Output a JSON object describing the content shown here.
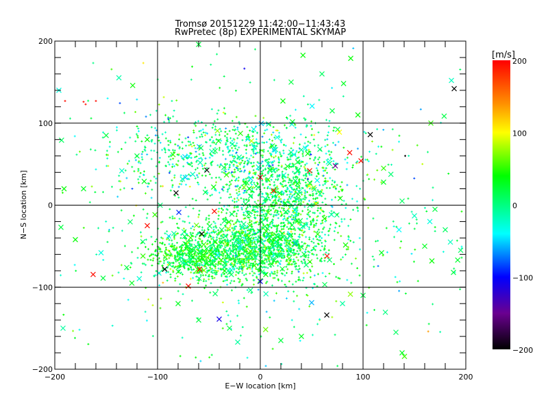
{
  "chart_data": {
    "type": "scatter",
    "title_line1": "Tromsø 20151229 11:42:00−11:43:43",
    "title_line2": "RwPretec (8p) EXPERIMENTAL SKYMAP",
    "xlabel": "E−W location [km]",
    "ylabel": "N−S location [km]",
    "xlim": [
      -200,
      200
    ],
    "ylim": [
      -200,
      200
    ],
    "x_ticks": [
      -200,
      -100,
      0,
      100,
      200
    ],
    "y_ticks": [
      -200,
      -100,
      0,
      100,
      200
    ],
    "x_tick_labels": [
      "−200",
      "−100",
      "0",
      "100",
      "200"
    ],
    "y_tick_labels": [
      "−200",
      "−100",
      "0",
      "100",
      "200"
    ],
    "grid": true,
    "colorbar": {
      "label": "[m/s]",
      "range": [
        -200,
        200
      ],
      "ticks": [
        200,
        100,
        0,
        -100,
        -200
      ],
      "tick_labels": [
        "200",
        "100",
        "0",
        "−100",
        "−200"
      ],
      "stops": [
        {
          "v": -200,
          "color": "#000000"
        },
        {
          "v": -150,
          "color": "#6a0090"
        },
        {
          "v": -100,
          "color": "#0000ff"
        },
        {
          "v": -40,
          "color": "#00ffff"
        },
        {
          "v": 0,
          "color": "#00ff80"
        },
        {
          "v": 40,
          "color": "#00ff00"
        },
        {
          "v": 100,
          "color": "#ffff00"
        },
        {
          "v": 140,
          "color": "#ff9000"
        },
        {
          "v": 200,
          "color": "#ff0000"
        }
      ]
    },
    "points": [
      {
        "x": -44.7,
        "y": -7.5,
        "v": 195,
        "m": "x"
      },
      {
        "x": -110,
        "y": -25,
        "v": 195,
        "m": "x"
      },
      {
        "x": -162.7,
        "y": -84.5,
        "v": 195,
        "m": "x"
      },
      {
        "x": -70,
        "y": -98.7,
        "v": 195,
        "m": "x"
      },
      {
        "x": 0,
        "y": 34,
        "v": 195,
        "m": "x"
      },
      {
        "x": 13,
        "y": 17.6,
        "v": 195,
        "m": "x"
      },
      {
        "x": 48,
        "y": 42,
        "v": 190,
        "m": "x"
      },
      {
        "x": 87,
        "y": 64,
        "v": 195,
        "m": "x"
      },
      {
        "x": 98,
        "y": 54,
        "v": 195,
        "m": "x"
      },
      {
        "x": 65,
        "y": -62,
        "v": 195,
        "m": "x"
      },
      {
        "x": -59,
        "y": -78,
        "v": 195,
        "m": "x"
      },
      {
        "x": -190,
        "y": 127,
        "v": 195,
        "m": "+"
      },
      {
        "x": -172,
        "y": 126,
        "v": 195,
        "m": "+"
      },
      {
        "x": -170,
        "y": 123,
        "v": 195,
        "m": "+"
      },
      {
        "x": -160,
        "y": 127,
        "v": 195,
        "m": "+"
      },
      {
        "x": 188.7,
        "y": 142,
        "v": -200,
        "m": "x"
      },
      {
        "x": 107,
        "y": 86,
        "v": -200,
        "m": "x"
      },
      {
        "x": -52,
        "y": 42.7,
        "v": -200,
        "m": "x"
      },
      {
        "x": -82,
        "y": 15,
        "v": -200,
        "m": "x"
      },
      {
        "x": -57,
        "y": -35,
        "v": -200,
        "m": "x"
      },
      {
        "x": -93,
        "y": -78,
        "v": -200,
        "m": "x"
      },
      {
        "x": 64.7,
        "y": -134,
        "v": -200,
        "m": "x"
      },
      {
        "x": 141,
        "y": 60,
        "v": -200,
        "m": "+"
      },
      {
        "x": 73,
        "y": 48,
        "v": -150,
        "m": "x"
      },
      {
        "x": 0,
        "y": -93,
        "v": -105,
        "m": "x"
      },
      {
        "x": -40,
        "y": -139,
        "v": -110,
        "m": "x"
      },
      {
        "x": 77,
        "y": 89,
        "v": 100,
        "m": "x"
      },
      {
        "x": 88,
        "y": 179,
        "v": 40,
        "m": "x"
      },
      {
        "x": 186,
        "y": 152,
        "v": -20,
        "m": "x"
      },
      {
        "x": 166,
        "y": 100,
        "v": 50,
        "m": "x"
      },
      {
        "x": -191,
        "y": 20,
        "v": 40,
        "m": "x"
      },
      {
        "x": -172,
        "y": 20,
        "v": 30,
        "m": "x"
      },
      {
        "x": -194,
        "y": -27,
        "v": 20,
        "m": "x"
      },
      {
        "x": -180,
        "y": -42,
        "v": 40,
        "m": "x"
      },
      {
        "x": -155,
        "y": -58,
        "v": -30,
        "m": "x"
      },
      {
        "x": -153,
        "y": -89,
        "v": 20,
        "m": "x"
      },
      {
        "x": -130,
        "y": -76,
        "v": 20,
        "m": "x"
      },
      {
        "x": -125,
        "y": -95,
        "v": 30,
        "m": "x"
      },
      {
        "x": -113,
        "y": 29,
        "v": 30,
        "m": "x"
      },
      {
        "x": -110,
        "y": 80,
        "v": 40,
        "m": "x"
      },
      {
        "x": -150,
        "y": 85,
        "v": 20,
        "m": "x"
      },
      {
        "x": -120,
        "y": 60,
        "v": 20,
        "m": "x"
      },
      {
        "x": -192,
        "y": -150,
        "v": -10,
        "m": "x"
      },
      {
        "x": 22,
        "y": 127,
        "v": 40,
        "m": "x"
      },
      {
        "x": 30,
        "y": 150,
        "v": 20,
        "m": "x"
      },
      {
        "x": 70,
        "y": 115,
        "v": 20,
        "m": "x"
      },
      {
        "x": 95,
        "y": 110,
        "v": 40,
        "m": "x"
      },
      {
        "x": 120,
        "y": 28,
        "v": 30,
        "m": "x"
      },
      {
        "x": 138,
        "y": 5,
        "v": 10,
        "m": "x"
      },
      {
        "x": 150,
        "y": -13,
        "v": -20,
        "m": "x"
      },
      {
        "x": 165,
        "y": -20,
        "v": -30,
        "m": "x"
      },
      {
        "x": 170,
        "y": -5,
        "v": 20,
        "m": "x"
      },
      {
        "x": 180,
        "y": -30,
        "v": 10,
        "m": "x"
      },
      {
        "x": 185,
        "y": -45,
        "v": -20,
        "m": "x"
      },
      {
        "x": 195,
        "y": -55,
        "v": 10,
        "m": "x"
      },
      {
        "x": 160,
        "y": -50,
        "v": 30,
        "m": "x"
      },
      {
        "x": 167,
        "y": -68,
        "v": 40,
        "m": "x"
      },
      {
        "x": 188,
        "y": -82,
        "v": 20,
        "m": "x"
      },
      {
        "x": 118,
        "y": -58,
        "v": 30,
        "m": "x"
      },
      {
        "x": 132,
        "y": -155,
        "v": 10,
        "m": "x"
      },
      {
        "x": 100,
        "y": -110,
        "v": 20,
        "m": "x"
      },
      {
        "x": 80,
        "y": -120,
        "v": -10,
        "m": "x"
      },
      {
        "x": 40,
        "y": -160,
        "v": 30,
        "m": "x"
      },
      {
        "x": 20,
        "y": -165,
        "v": 20,
        "m": "x"
      },
      {
        "x": -30,
        "y": -150,
        "v": 20,
        "m": "x"
      },
      {
        "x": -22,
        "y": -167,
        "v": -10,
        "m": "x"
      },
      {
        "x": -60,
        "y": -140,
        "v": 20,
        "m": "x"
      },
      {
        "x": -80,
        "y": -120,
        "v": 30,
        "m": "x"
      },
      {
        "x": 60,
        "y": 160,
        "v": 10,
        "m": "x"
      },
      {
        "x": -5,
        "y": 190,
        "v": 10,
        "m": "+"
      },
      {
        "x": -60,
        "y": 199,
        "v": 20,
        "m": "x"
      },
      {
        "x": 138,
        "y": -180,
        "v": 30,
        "m": "x"
      },
      {
        "x": 120,
        "y": 45,
        "v": 50,
        "m": "x"
      },
      {
        "x": 135,
        "y": -30,
        "v": -40,
        "m": "x"
      },
      {
        "x": -196,
        "y": 140,
        "v": -30,
        "m": "x"
      }
    ],
    "clusters": [
      {
        "cx": -15,
        "cy": -55,
        "sx": 38,
        "sy": 20,
        "n": 1500,
        "v_mean": 20,
        "v_sd": 30
      },
      {
        "cx": 25,
        "cy": 5,
        "sx": 28,
        "sy": 30,
        "n": 900,
        "v_mean": 15,
        "v_sd": 30
      },
      {
        "cx": -30,
        "cy": 60,
        "sx": 55,
        "sy": 25,
        "n": 700,
        "v_mean": 0,
        "v_sd": 35
      },
      {
        "cx": -70,
        "cy": -65,
        "sx": 20,
        "sy": 12,
        "n": 350,
        "v_mean": 30,
        "v_sd": 25
      },
      {
        "cx": 0,
        "cy": -20,
        "sx": 110,
        "sy": 100,
        "n": 500,
        "v_mean": 10,
        "v_sd": 40
      }
    ]
  }
}
